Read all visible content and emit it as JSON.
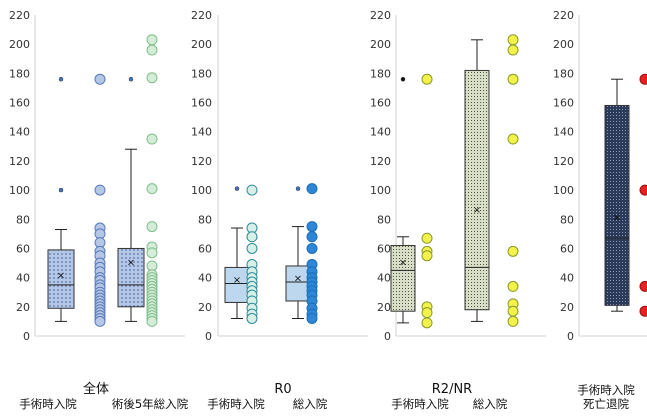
{
  "chart_data": [
    {
      "type": "box",
      "title": "全体",
      "ylim": [
        0,
        220
      ],
      "yticks": [
        0,
        20,
        40,
        60,
        80,
        100,
        120,
        140,
        160,
        180,
        200,
        220
      ],
      "categories": [
        "手術時入院",
        "術後5年総入院"
      ],
      "boxes": [
        {
          "category": "手術時入院",
          "min": 10,
          "q1": 19,
          "median": 35,
          "q3": 59,
          "max": 73,
          "mean": 42,
          "outliers": [
            100,
            176
          ],
          "fill": "#b4c7e7",
          "pattern": "dots"
        },
        {
          "category": "術後5年総入院",
          "min": 10,
          "q1": 20,
          "median": 35,
          "q3": 60,
          "max": 128,
          "mean": 51,
          "outliers": [
            176
          ],
          "fill": "#c5e0b4",
          "pattern": "dots"
        }
      ],
      "points": [
        {
          "category": "手術時入院",
          "color": "#b4c7e7",
          "stroke": "#5a7ab8",
          "values": [
            176,
            100,
            74,
            70,
            64,
            58,
            55,
            50,
            47,
            44,
            40,
            38,
            35,
            33,
            30,
            28,
            26,
            24,
            22,
            20,
            18,
            16,
            14,
            12,
            10
          ]
        },
        {
          "category": "術後5年総入院",
          "color": "#d5ecd8",
          "stroke": "#7fbf8a",
          "values": [
            203,
            196,
            177,
            135,
            101,
            75,
            61,
            57,
            48,
            42,
            40,
            38,
            36,
            34,
            32,
            30,
            28,
            26,
            24,
            22,
            20,
            18,
            16,
            14,
            12,
            10
          ]
        }
      ]
    },
    {
      "type": "box",
      "title": "R0",
      "ylim": [
        0,
        220
      ],
      "yticks": [
        0,
        20,
        40,
        60,
        80,
        100,
        120,
        140,
        160,
        180,
        200,
        220
      ],
      "categories": [
        "手術時入院",
        "総入院"
      ],
      "boxes": [
        {
          "category": "手術時入院",
          "min": 12,
          "q1": 23,
          "median": 36,
          "q3": 47,
          "max": 74,
          "mean": 39,
          "outliers": [
            101
          ],
          "fill": "#bdd7ee",
          "pattern": "none"
        },
        {
          "category": "総入院",
          "min": 12,
          "q1": 24,
          "median": 37,
          "q3": 48,
          "max": 75,
          "mean": 40,
          "outliers": [
            101
          ],
          "fill": "#bdd7ee",
          "pattern": "none"
        }
      ],
      "points": [
        {
          "category": "手術時入院",
          "color": "#d6f0e8",
          "stroke": "#2e8a98",
          "values": [
            100,
            74,
            68,
            60,
            49,
            44,
            40,
            37,
            34,
            31,
            28,
            24,
            19,
            15,
            12
          ]
        },
        {
          "category": "総入院",
          "color": "#2e86d6",
          "stroke": "#1e6eb8",
          "values": [
            101,
            75,
            68,
            60,
            49,
            44,
            40,
            37,
            34,
            31,
            28,
            24,
            19,
            15,
            12
          ]
        }
      ]
    },
    {
      "type": "box",
      "title": "R2/NR",
      "ylim": [
        0,
        220
      ],
      "yticks": [
        0,
        20,
        40,
        60,
        80,
        100,
        120,
        140,
        160,
        180,
        200,
        220
      ],
      "categories": [
        "手術時入院",
        "総入院"
      ],
      "boxes": [
        {
          "category": "手術時入院",
          "min": 9,
          "q1": 17,
          "median": 45,
          "q3": 62,
          "max": 68,
          "mean": 51,
          "outliers": [
            176
          ],
          "fill": "#d9dec9",
          "pattern": "grid"
        },
        {
          "category": "総入院",
          "min": 10,
          "q1": 18,
          "median": 47,
          "q3": 182,
          "max": 203,
          "mean": 87,
          "outliers": [],
          "fill": "#d9dec9",
          "pattern": "grid"
        }
      ],
      "points": [
        {
          "category": "手術時入院",
          "color": "#f2f24a",
          "stroke": "#8a9a2a",
          "values": [
            176,
            67,
            58,
            55,
            20,
            16,
            9
          ]
        },
        {
          "category": "総入院",
          "color": "#f2f24a",
          "stroke": "#8a9a2a",
          "values": [
            203,
            196,
            176,
            135,
            58,
            34,
            22,
            17,
            10
          ]
        }
      ]
    },
    {
      "type": "box",
      "title": "",
      "ylim": [
        0,
        220
      ],
      "yticks": [
        0,
        20,
        40,
        60,
        80,
        100,
        120,
        140,
        160,
        180,
        200,
        220
      ],
      "categories": [
        "手術時入院",
        "死亡退院"
      ],
      "boxes": [
        {
          "category": "手術時入院",
          "min": 17,
          "q1": 21,
          "median": 67,
          "q3": 158,
          "max": 176,
          "mean": 82,
          "outliers": [],
          "fill": "#3b4a6b",
          "pattern": "dense"
        }
      ],
      "points": [
        {
          "category": "手術時入院",
          "color": "#e02424",
          "stroke": "#a01010",
          "values": [
            176,
            100,
            34,
            17
          ]
        }
      ]
    }
  ]
}
